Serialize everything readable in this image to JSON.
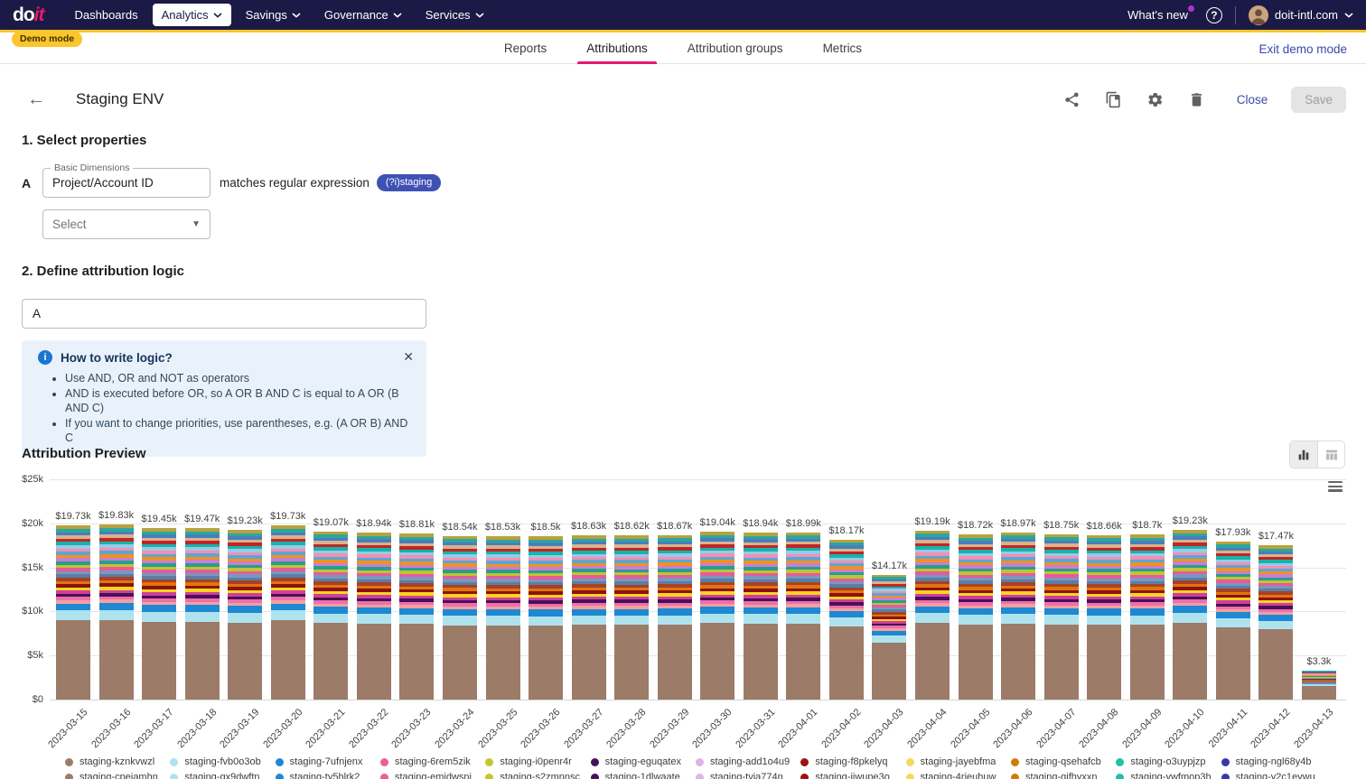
{
  "navbar": {
    "logo_part1": "do",
    "logo_part2": "it",
    "items": [
      {
        "label": "Dashboards",
        "chevron": false,
        "active": false
      },
      {
        "label": "Analytics",
        "chevron": true,
        "active": true
      },
      {
        "label": "Savings",
        "chevron": true,
        "active": false
      },
      {
        "label": "Governance",
        "chevron": true,
        "active": false
      },
      {
        "label": "Services",
        "chevron": true,
        "active": false
      }
    ],
    "whats_new": "What's new",
    "account": "doit-intl.com"
  },
  "demo_badge": "Demo mode",
  "tabs": {
    "items": [
      "Reports",
      "Attributions",
      "Attribution groups",
      "Metrics"
    ],
    "active": "Attributions"
  },
  "exit_demo": "Exit demo mode",
  "header": {
    "title": "Staging ENV",
    "close_label": "Close",
    "save_label": "Save",
    "icons": [
      "share-icon",
      "copy-icon",
      "settings-icon",
      "delete-icon"
    ]
  },
  "sections": {
    "select_properties": {
      "heading": "1. Select properties",
      "row_label": "A",
      "dimension_label": "Basic Dimensions",
      "dimension_value": "Project/Account ID",
      "operator_text": "matches regular expression",
      "chip": "(?i)staging",
      "select_placeholder": "Select"
    },
    "logic": {
      "heading": "2. Define attribution logic",
      "value": "A",
      "info_title": "How to write logic?",
      "info_bullets": [
        "Use AND, OR and NOT as operators",
        "AND is executed before OR, so A OR B AND C is equal to A OR (B AND C)",
        "If you want to change priorities, use parentheses, e.g. (A OR B) AND C"
      ]
    }
  },
  "preview": {
    "heading": "Attribution Preview"
  },
  "chart_data": {
    "type": "bar",
    "stacked": true,
    "title": "Attribution Preview",
    "legend_position": "bottom",
    "grid": true,
    "ylim_usd": [
      0,
      25000
    ],
    "y_ticks": [
      "$0",
      "$5k",
      "$10k",
      "$15k",
      "$20k",
      "$25k"
    ],
    "categories": [
      "2023-03-15",
      "2023-03-16",
      "2023-03-17",
      "2023-03-18",
      "2023-03-19",
      "2023-03-20",
      "2023-03-21",
      "2023-03-22",
      "2023-03-23",
      "2023-03-24",
      "2023-03-25",
      "2023-03-26",
      "2023-03-27",
      "2023-03-28",
      "2023-03-29",
      "2023-03-30",
      "2023-03-31",
      "2023-04-01",
      "2023-04-02",
      "2023-04-03",
      "2023-04-04",
      "2023-04-05",
      "2023-04-06",
      "2023-04-07",
      "2023-04-08",
      "2023-04-09",
      "2023-04-10",
      "2023-04-11",
      "2023-04-12",
      "2023-04-13"
    ],
    "totals_usd_k": [
      19.73,
      19.83,
      19.45,
      19.47,
      19.23,
      19.73,
      19.07,
      18.94,
      18.81,
      18.54,
      18.53,
      18.5,
      18.63,
      18.62,
      18.67,
      19.04,
      18.94,
      18.99,
      18.17,
      14.17,
      19.19,
      18.72,
      18.97,
      18.75,
      18.66,
      18.7,
      19.23,
      17.93,
      17.47,
      3.3
    ],
    "bar_labels": [
      "$19.73k",
      "$19.83k",
      "$19.45k",
      "$19.47k",
      "$19.23k",
      "$19.73k",
      "$19.07k",
      "$18.94k",
      "$18.81k",
      "$18.54k",
      "$18.53k",
      "$18.5k",
      "$18.63k",
      "$18.62k",
      "$18.67k",
      "$19.04k",
      "$18.94k",
      "$18.99k",
      "$18.17k",
      "$14.17k",
      "$19.19k",
      "$18.72k",
      "$18.97k",
      "$18.75k",
      "$18.66k",
      "$18.7k",
      "$19.23k",
      "$17.93k",
      "$17.47k",
      "$3.3k"
    ],
    "bar_composition": {
      "base_segments": [
        {
          "name": "staging-kznkvwzl",
          "color": "#9c7b68",
          "frac": 0.455
        },
        {
          "name": "staging-fvb0o3ob",
          "color": "#aee3ee",
          "frac": 0.057
        },
        {
          "name": "staging-7ufnjenx",
          "color": "#1e88d2",
          "frac": 0.04
        }
      ],
      "stripe_fraction": 0.448,
      "stripe_colors_bottom_to_top": [
        "#f2a0a1",
        "#f06eaa",
        "#461257",
        "#cf3e9c",
        "#f6d51f",
        "#8c1211",
        "#e0760b",
        "#a8402a",
        "#5b7ea3",
        "#7b97bd",
        "#e85a9c",
        "#bcc62d",
        "#2a9d8f",
        "#c77fd4",
        "#f1921e",
        "#5aa7d6",
        "#f48fb1",
        "#96cbe8",
        "#17b3a9",
        "#c02626",
        "#d9b38c",
        "#4a7ebb",
        "#2aa7a0",
        "#b8a23e"
      ]
    },
    "legend": [
      {
        "label": "staging-kznkvwzl",
        "color": "#9c7b68"
      },
      {
        "label": "staging-fvb0o3ob",
        "color": "#aee3ee"
      },
      {
        "label": "staging-7ufnjenx",
        "color": "#1e88d2"
      },
      {
        "label": "staging-6rem5zik",
        "color": "#ea5f9b"
      },
      {
        "label": "staging-i0penr4r",
        "color": "#c3c72f"
      },
      {
        "label": "staging-eguqatex",
        "color": "#461257"
      },
      {
        "label": "staging-add1o4u9",
        "color": "#ddb3ea"
      },
      {
        "label": "staging-f8pkelyq",
        "color": "#9c1414"
      },
      {
        "label": "staging-jayebfma",
        "color": "#f6d95a"
      },
      {
        "label": "staging-qsehafcb",
        "color": "#d07b0a"
      },
      {
        "label": "staging-o3uypjzp",
        "color": "#1fc1a7"
      },
      {
        "label": "staging-ngl68y4b",
        "color": "#3937ae"
      },
      {
        "label": "staging-cpejamhn",
        "color": "#9c7b68"
      },
      {
        "label": "staging-qx9dwftn",
        "color": "#aee3ee"
      },
      {
        "label": "staging-ty5hlrk2",
        "color": "#1e88d2"
      },
      {
        "label": "staging-emjdwsnj",
        "color": "#ea5f9b"
      },
      {
        "label": "staging-s2zmnnsc",
        "color": "#c3c72f"
      },
      {
        "label": "staging-1dlwaate",
        "color": "#461257"
      },
      {
        "label": "staging-tvia774n",
        "color": "#ddb3ea"
      },
      {
        "label": "staging-jjwupe3o",
        "color": "#9c1414"
      },
      {
        "label": "staging-4rieuhuw",
        "color": "#f6d95a"
      },
      {
        "label": "staging-qifhyxxn",
        "color": "#d07b0a"
      },
      {
        "label": "staging-ywfmop3h",
        "color": "#1fc1a7"
      },
      {
        "label": "staging-y2c1eywu",
        "color": "#3937ae"
      }
    ]
  }
}
